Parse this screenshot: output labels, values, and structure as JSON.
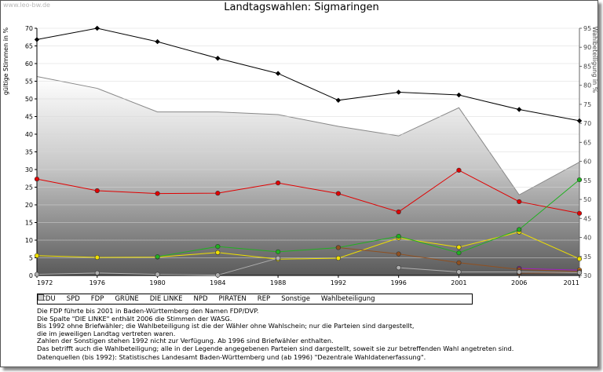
{
  "watermark": "www.leo-bw.de",
  "chart_data": {
    "type": "line",
    "title": "Landtagswahlen: Sigmaringen",
    "ylabel_left": "gültige Stimmen in %",
    "ylabel_right": "Wahlbeteiligung in %",
    "x": [
      "1972",
      "1976",
      "1980",
      "1984",
      "1988",
      "1992",
      "1996",
      "2001",
      "2006",
      "2011"
    ],
    "ylim_left": [
      0,
      70
    ],
    "ylim_right": [
      30,
      95
    ],
    "yticks_left": [
      0,
      5,
      10,
      15,
      20,
      25,
      30,
      35,
      40,
      45,
      50,
      55,
      60,
      65,
      70
    ],
    "yticks_right": [
      30,
      35,
      40,
      45,
      50,
      55,
      60,
      65,
      70,
      75,
      80,
      85,
      90,
      95
    ],
    "grid": true,
    "colors": {
      "CDU": "#000000",
      "SPD": "#e00000",
      "FDP": "#f0e000",
      "GRUENE": "#20b020",
      "LINKE": "#a020c0",
      "NPD": "#704020",
      "PIRATEN": "#f08000",
      "REP": "#905020",
      "Sonstige": "#b0b0b0",
      "Wahlbeteiligung": "#888888"
    },
    "series": [
      {
        "name": "CDU",
        "key": "CDU",
        "values": [
          66.8,
          70.0,
          66.2,
          61.5,
          57.2,
          49.6,
          51.9,
          51.1,
          47.0,
          43.8
        ]
      },
      {
        "name": "SPD",
        "key": "SPD",
        "values": [
          27.3,
          24.0,
          23.2,
          23.3,
          26.2,
          23.2,
          18.0,
          29.8,
          20.9,
          17.6
        ]
      },
      {
        "name": "FDP",
        "key": "FDP",
        "values": [
          5.6,
          5.1,
          5.2,
          6.5,
          4.6,
          4.9,
          10.6,
          8.0,
          12.3,
          4.7
        ]
      },
      {
        "name": "GRÜNE",
        "key": "GRUENE",
        "values": [
          null,
          null,
          5.3,
          8.2,
          6.7,
          7.9,
          11.1,
          6.4,
          13.0,
          27.1
        ]
      },
      {
        "name": "DIE LINKE",
        "key": "LINKE",
        "values": [
          null,
          null,
          null,
          null,
          null,
          null,
          null,
          null,
          2.0,
          1.5
        ]
      },
      {
        "name": "NPD",
        "key": "NPD",
        "values": [
          null,
          null,
          null,
          null,
          null,
          null,
          null,
          null,
          0.6,
          0.8
        ]
      },
      {
        "name": "PIRATEN",
        "key": "PIRATEN",
        "values": [
          null,
          null,
          null,
          null,
          null,
          null,
          null,
          null,
          null,
          1.5
        ]
      },
      {
        "name": "REP",
        "key": "REP",
        "values": [
          null,
          null,
          null,
          null,
          null,
          7.9,
          6.1,
          3.6,
          1.7,
          1.1
        ]
      },
      {
        "name": "Sonstige",
        "key": "Sonstige",
        "values": [
          0.3,
          0.7,
          0.3,
          0.1,
          4.9,
          null,
          2.2,
          1.0,
          1.0,
          0.8
        ]
      }
    ],
    "wahlbeteiligung": {
      "name": "Wahlbeteiligung",
      "values": [
        82.3,
        79.2,
        73.0,
        73.0,
        72.3,
        69.2,
        66.7,
        74.1,
        51.2,
        59.8
      ]
    },
    "legend_items": [
      {
        "label": "CDU",
        "key": "CDU",
        "shape": "diamond"
      },
      {
        "label": "SPD",
        "key": "SPD",
        "shape": "circle"
      },
      {
        "label": "FDP",
        "key": "FDP",
        "shape": "circle"
      },
      {
        "label": "GRÜNE",
        "key": "GRUENE",
        "shape": "circle"
      },
      {
        "label": "DIE LINKE",
        "key": "LINKE",
        "shape": "circle"
      },
      {
        "label": "NPD",
        "key": "NPD",
        "shape": "circle"
      },
      {
        "label": "PIRATEN",
        "key": "PIRATEN",
        "shape": "circle"
      },
      {
        "label": "REP",
        "key": "REP",
        "shape": "circle"
      },
      {
        "label": "Sonstige",
        "key": "Sonstige",
        "shape": "circle"
      },
      {
        "label": "Wahlbeteiligung",
        "key": "Wahlbeteiligung",
        "shape": "square"
      }
    ]
  },
  "notes": [
    "Die FDP führte bis 2001 in Baden-Württemberg den Namen FDP/DVP.",
    "Die Spalte \"DIE LINKE\" enthält 2006 die Stimmen der WASG.",
    "Bis 1992 ohne Briefwähler; die Wahlbeteiligung ist die der Wähler ohne Wahlschein; nur die Parteien sind dargestellt,",
    "die im jeweiligen Landtag vertreten waren.",
    "Zahlen der Sonstigen stehen 1992 nicht zur Verfügung. Ab 1996 sind Briefwähler enthalten.",
    "Das betrifft auch die Wahlbeteiligung; alle in der Legende angegebenen Parteien sind dargestellt, soweit sie zur betreffenden Wahl angetreten sind."
  ],
  "source": "Datenquellen (bis 1992): Statistisches Landesamt Baden-Württemberg und (ab 1996) \"Dezentrale Wahldatenerfassung\"."
}
